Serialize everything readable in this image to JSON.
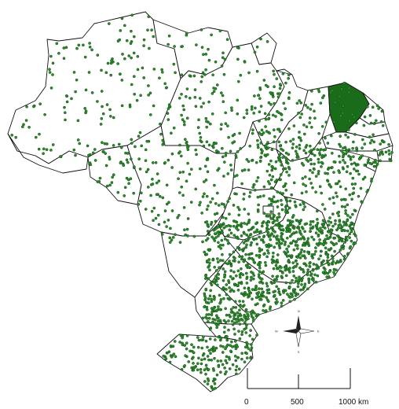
{
  "map": {
    "land_color": "#ffffff",
    "border_color": "#111111",
    "point_color": "#2e8b2e",
    "dense_color": "#1a6b1a"
  },
  "compass": {
    "icon": "compass-rose-icon",
    "n": "N",
    "s": "S",
    "e": "E",
    "w": "W"
  },
  "scale_bar": {
    "labels": [
      "0",
      "500",
      "1000 km"
    ],
    "values_km": [
      0,
      500,
      1000
    ]
  }
}
